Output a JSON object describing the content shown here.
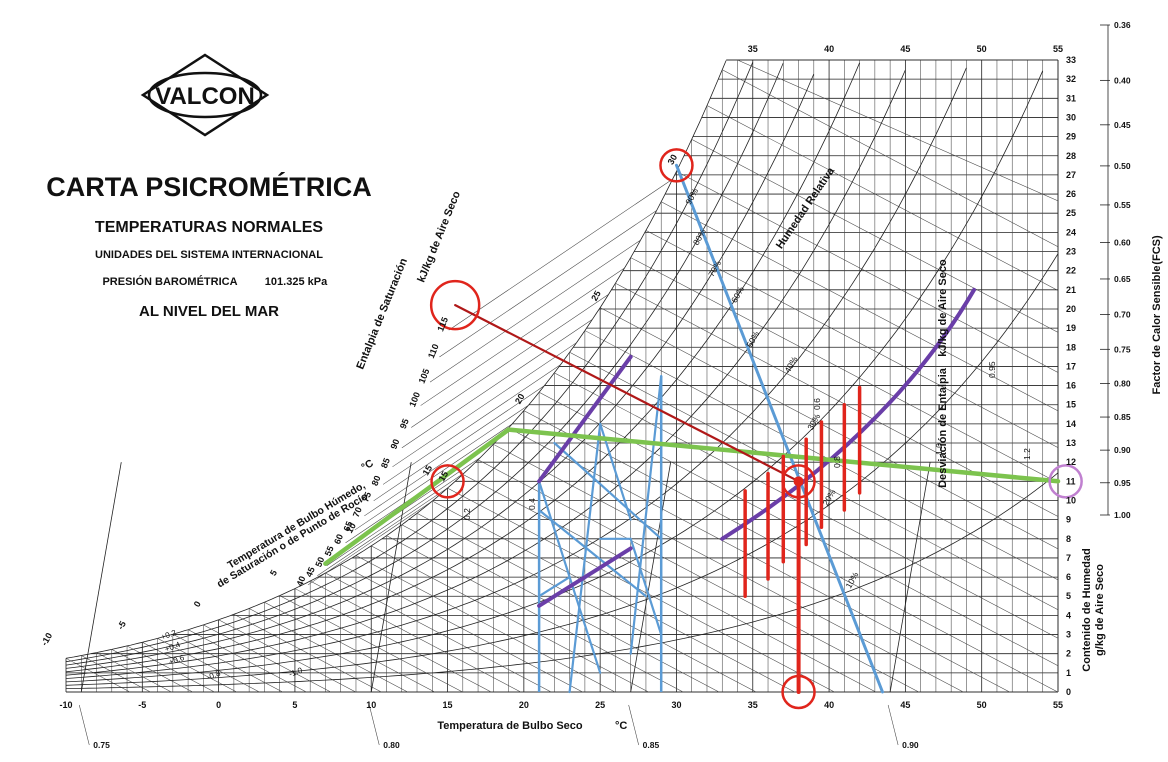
{
  "brand": {
    "logo": "VALCON"
  },
  "header": {
    "title": "CARTA PSICROMÉTRICA",
    "subtitle": "TEMPERATURAS NORMALES",
    "units": "UNIDADES DEL SISTEMA INTERNACIONAL",
    "pressure_label": "PRESIÓN BAROMÉTRICA",
    "pressure_value": "101.325 kPa",
    "level": "AL NIVEL DEL MAR"
  },
  "chart_data": {
    "type": "psychrometric",
    "xlabel": "Temperatura de Bulbo Seco",
    "xunit": "°C",
    "ylabel": "Contenido de Humedad",
    "yunit": "g/kg de Aire Seco",
    "enthalpy_label": "Entalpia de Saturación",
    "enthalpy_unit": "kJ/kg de Aire Seco",
    "wetbulb_label": "Temperatura de Bulbo Húmedo,",
    "wetbulb_label2": "de Saturación o de Punto de Rocío",
    "wetbulb_unit": "°C",
    "rh_label": "Humedad Relativa",
    "enthalpy_dev_label": "Desviación de Entalpia",
    "enthalpy_dev_unit": "kJ/kg de Aire Seco",
    "shr_label": "Factor de Calor Sensible",
    "shr_abbr": "(FCS)",
    "xlim": [
      -10,
      55
    ],
    "ylim": [
      0,
      33
    ],
    "x_ticks": [
      -10,
      -5,
      0,
      5,
      10,
      15,
      20,
      25,
      30,
      35,
      40,
      45,
      50,
      55
    ],
    "x_top_ticks": [
      35,
      40,
      45,
      50,
      55
    ],
    "y_ticks": [
      0,
      1,
      2,
      3,
      4,
      5,
      6,
      7,
      8,
      9,
      10,
      11,
      12,
      13,
      14,
      15,
      16,
      17,
      18,
      19,
      20,
      21,
      22,
      23,
      24,
      25,
      26,
      27,
      28,
      29,
      30,
      31,
      32,
      33
    ],
    "enthalpy_ticks": [
      40,
      45,
      50,
      55,
      60,
      65,
      70,
      75,
      80,
      85,
      90,
      95,
      100,
      105,
      110,
      115
    ],
    "wetbulb_ticks": [
      -10,
      -5,
      0,
      5,
      10,
      15,
      20,
      25,
      30,
      35,
      40
    ],
    "wetbulb_diag_labels": [
      {
        "t": 15,
        "text": "15"
      },
      {
        "t": 20,
        "text": "20"
      },
      {
        "t": 25,
        "text": "25"
      },
      {
        "t": 30,
        "text": "30"
      }
    ],
    "rh_values": [
      10,
      20,
      30,
      40,
      50,
      60,
      70,
      80,
      90
    ],
    "rh_labels": [
      "10%",
      "20%",
      "30%",
      "40%",
      "50%",
      "60%",
      "70%",
      "80%",
      "90%"
    ],
    "volume_ticks": [
      "0.75",
      "0.80",
      "0.85",
      "0.90"
    ],
    "shr_ticks": [
      "0.36",
      "0.40",
      "0.45",
      "0.50",
      "0.55",
      "0.60",
      "0.65",
      "0.70",
      "0.75",
      "0.80",
      "0.85",
      "0.90",
      "0.95",
      "1.00"
    ],
    "enthalpy_dev_ticks": [
      "+0.2",
      "+0.4",
      "+0.6",
      "-0.8",
      "-1.0"
    ],
    "epsilon_labels": [
      "0.95",
      "1.0",
      "1.2",
      "0.8",
      "0.6",
      "0.4",
      "0.2"
    ],
    "annotations": {
      "state_point": {
        "t": 38,
        "w": 11
      },
      "blue_line": [
        [
          30,
          27.5
        ],
        [
          43.5,
          0
        ]
      ],
      "green_line": [
        [
          7,
          6.7
        ],
        [
          19,
          13.7
        ],
        [
          55,
          11
        ]
      ],
      "red_line": [
        [
          15.5,
          20.2
        ],
        [
          38,
          11
        ]
      ],
      "red_drop": [
        [
          38,
          11
        ],
        [
          38,
          0
        ]
      ],
      "circles": [
        {
          "t": 30,
          "w": 27.5,
          "color": "red"
        },
        {
          "t": 15.5,
          "w": 20.2,
          "color": "red"
        },
        {
          "t": 15,
          "w": 11,
          "color": "red"
        },
        {
          "t": 38,
          "w": 11,
          "color": "red"
        },
        {
          "t": 38,
          "w": 0,
          "color": "red"
        },
        {
          "t": 55.5,
          "w": 11,
          "color": "purple"
        }
      ],
      "blue_verticals": [
        21,
        29
      ],
      "purple_lines": [
        [
          [
            21,
            11
          ],
          [
            27,
            17.5
          ]
        ],
        [
          [
            21,
            4.5
          ],
          [
            27,
            7.5
          ]
        ],
        [
          [
            33,
            8
          ],
          [
            49.5,
            21
          ]
        ]
      ],
      "red_ticks": [
        34.5,
        36,
        37,
        38.5,
        39.5,
        41,
        42
      ]
    }
  },
  "colors": {
    "red": "#e0251c",
    "darkred": "#b01818",
    "blue": "#5b9bd5",
    "green": "#7cc34e",
    "purple": "#6a3ea8",
    "lavender": "#c080d0"
  }
}
